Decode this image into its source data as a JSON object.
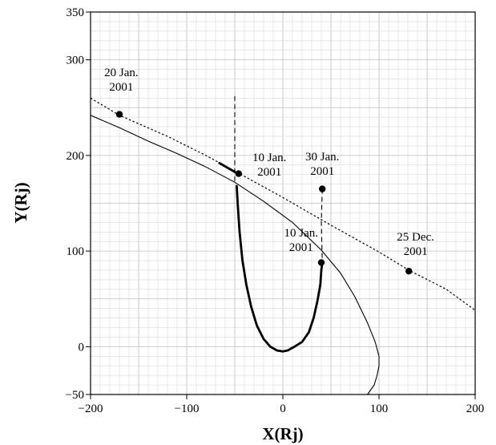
{
  "chart_data": {
    "type": "line",
    "title": "",
    "xlabel": "X(Rj)",
    "ylabel": "Y(Rj)",
    "xlim": [
      -200,
      200
    ],
    "ylim": [
      -50,
      350
    ],
    "xticks": [
      -200,
      -100,
      0,
      100,
      200
    ],
    "yticks": [
      -50,
      0,
      100,
      200,
      300,
      350
    ],
    "x_tick_labels": [
      "−200",
      "−100",
      "0",
      "100",
      "200"
    ],
    "y_tick_labels": [
      "−50",
      "0",
      "100",
      "200",
      "300",
      "350"
    ],
    "grid": true,
    "series": [
      {
        "style": "solid-thin",
        "x": [
          -200,
          -170,
          -140,
          -110,
          -80,
          -50,
          -20,
          10,
          40,
          60,
          75,
          88,
          96,
          100,
          100,
          98,
          95,
          88
        ],
        "y": [
          242,
          229,
          215,
          202,
          188,
          172,
          152,
          130,
          101,
          77,
          52,
          25,
          5,
          -10,
          -20,
          -30,
          -40,
          -50
        ]
      },
      {
        "style": "dotted",
        "x": [
          -200,
          -170,
          -120,
          -80,
          -47,
          0,
          50,
          100,
          131,
          170,
          200
        ],
        "y": [
          260,
          242,
          220,
          200,
          182,
          156,
          127,
          99,
          80,
          60,
          38
        ]
      },
      {
        "style": "solid-thick",
        "x": [
          -48,
          -47,
          -45,
          -42,
          -38,
          -33,
          -27,
          -20,
          -13,
          -6,
          0,
          5,
          12,
          20,
          27,
          32,
          36,
          39,
          40,
          41
        ],
        "y": [
          168,
          150,
          120,
          90,
          65,
          42,
          22,
          8,
          0,
          -4,
          -5,
          -4,
          0,
          5,
          15,
          30,
          48,
          65,
          80,
          88
        ]
      },
      {
        "style": "solid-thick",
        "x": [
          -66,
          -47
        ],
        "y": [
          192,
          181
        ]
      },
      {
        "style": "dashed",
        "x": [
          -50,
          -50
        ],
        "y": [
          262,
          172
        ]
      },
      {
        "style": "dashed",
        "x": [
          41,
          40,
          41
        ],
        "y": [
          165,
          130,
          90
        ]
      }
    ],
    "points": [
      {
        "x": -170,
        "y": 243,
        "label_lines": [
          "20 Jan.",
          "2001"
        ],
        "label_x": -168,
        "label_y": 283
      },
      {
        "x": -46,
        "y": 181,
        "label_lines": [
          "10 Jan.",
          "2001"
        ],
        "label_x": -14,
        "label_y": 194
      },
      {
        "x": 41,
        "y": 165,
        "label_lines": [
          "30 Jan.",
          "2001"
        ],
        "label_x": 41,
        "label_y": 195
      },
      {
        "x": 40,
        "y": 88,
        "label_lines": [
          "10 Jan.",
          "2001"
        ],
        "label_x": 19,
        "label_y": 115
      },
      {
        "x": 131,
        "y": 79,
        "label_lines": [
          "25 Dec.",
          "2001"
        ],
        "label_x": 138,
        "label_y": 111
      }
    ]
  }
}
